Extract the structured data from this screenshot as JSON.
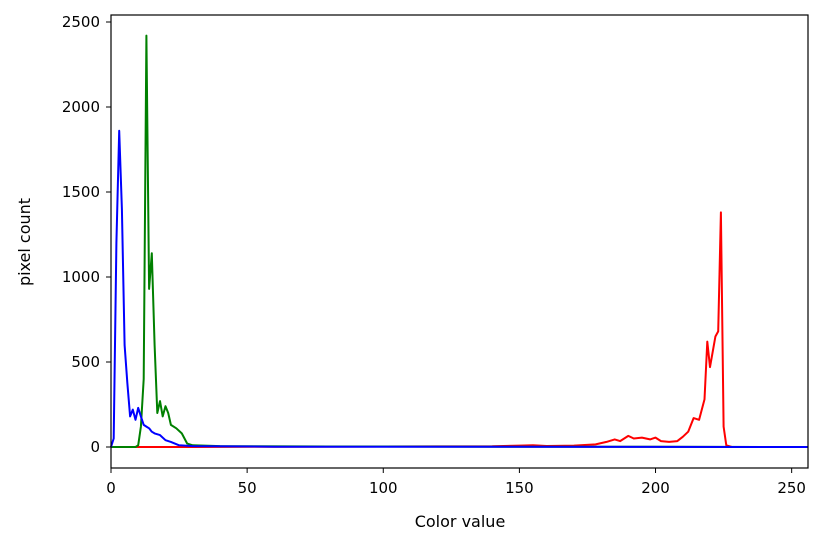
{
  "chart_data": {
    "type": "line",
    "title": "",
    "xlabel": "Color value",
    "ylabel": "pixel count",
    "xlim": [
      0,
      256
    ],
    "ylim": [
      -120,
      2550
    ],
    "xticks": [
      0,
      50,
      100,
      150,
      200,
      250
    ],
    "yticks": [
      0,
      500,
      1000,
      1500,
      2000,
      2500
    ],
    "grid": false,
    "legend": null,
    "series": [
      {
        "name": "red",
        "color": "#ff0000",
        "points": [
          [
            0,
            0
          ],
          [
            8,
            0
          ],
          [
            30,
            0
          ],
          [
            60,
            2
          ],
          [
            100,
            3
          ],
          [
            140,
            4
          ],
          [
            150,
            8
          ],
          [
            155,
            10
          ],
          [
            160,
            6
          ],
          [
            170,
            8
          ],
          [
            178,
            15
          ],
          [
            182,
            30
          ],
          [
            185,
            45
          ],
          [
            187,
            35
          ],
          [
            190,
            65
          ],
          [
            192,
            50
          ],
          [
            195,
            55
          ],
          [
            198,
            45
          ],
          [
            200,
            55
          ],
          [
            202,
            35
          ],
          [
            205,
            30
          ],
          [
            208,
            35
          ],
          [
            210,
            60
          ],
          [
            212,
            90
          ],
          [
            214,
            170
          ],
          [
            216,
            160
          ],
          [
            218,
            280
          ],
          [
            219,
            620
          ],
          [
            220,
            470
          ],
          [
            221,
            560
          ],
          [
            222,
            650
          ],
          [
            223,
            680
          ],
          [
            224,
            1380
          ],
          [
            225,
            120
          ],
          [
            226,
            10
          ],
          [
            228,
            0
          ],
          [
            256,
            0
          ]
        ]
      },
      {
        "name": "green",
        "color": "#008000",
        "points": [
          [
            0,
            0
          ],
          [
            9,
            0
          ],
          [
            10,
            10
          ],
          [
            11,
            120
          ],
          [
            12,
            400
          ],
          [
            13,
            2420
          ],
          [
            14,
            930
          ],
          [
            15,
            1140
          ],
          [
            16,
            600
          ],
          [
            17,
            200
          ],
          [
            18,
            270
          ],
          [
            19,
            180
          ],
          [
            20,
            240
          ],
          [
            21,
            200
          ],
          [
            22,
            130
          ],
          [
            24,
            110
          ],
          [
            26,
            80
          ],
          [
            28,
            20
          ],
          [
            30,
            10
          ],
          [
            40,
            5
          ],
          [
            80,
            3
          ],
          [
            150,
            2
          ],
          [
            200,
            1
          ],
          [
            256,
            0
          ]
        ]
      },
      {
        "name": "blue",
        "color": "#0000ff",
        "points": [
          [
            0,
            0
          ],
          [
            1,
            50
          ],
          [
            2,
            1200
          ],
          [
            3,
            1860
          ],
          [
            4,
            1400
          ],
          [
            5,
            600
          ],
          [
            6,
            380
          ],
          [
            7,
            180
          ],
          [
            8,
            220
          ],
          [
            9,
            160
          ],
          [
            10,
            230
          ],
          [
            11,
            180
          ],
          [
            12,
            130
          ],
          [
            13,
            120
          ],
          [
            14,
            110
          ],
          [
            15,
            90
          ],
          [
            16,
            80
          ],
          [
            18,
            70
          ],
          [
            20,
            40
          ],
          [
            22,
            30
          ],
          [
            25,
            10
          ],
          [
            30,
            5
          ],
          [
            60,
            2
          ],
          [
            150,
            1
          ],
          [
            256,
            0
          ]
        ]
      }
    ]
  }
}
